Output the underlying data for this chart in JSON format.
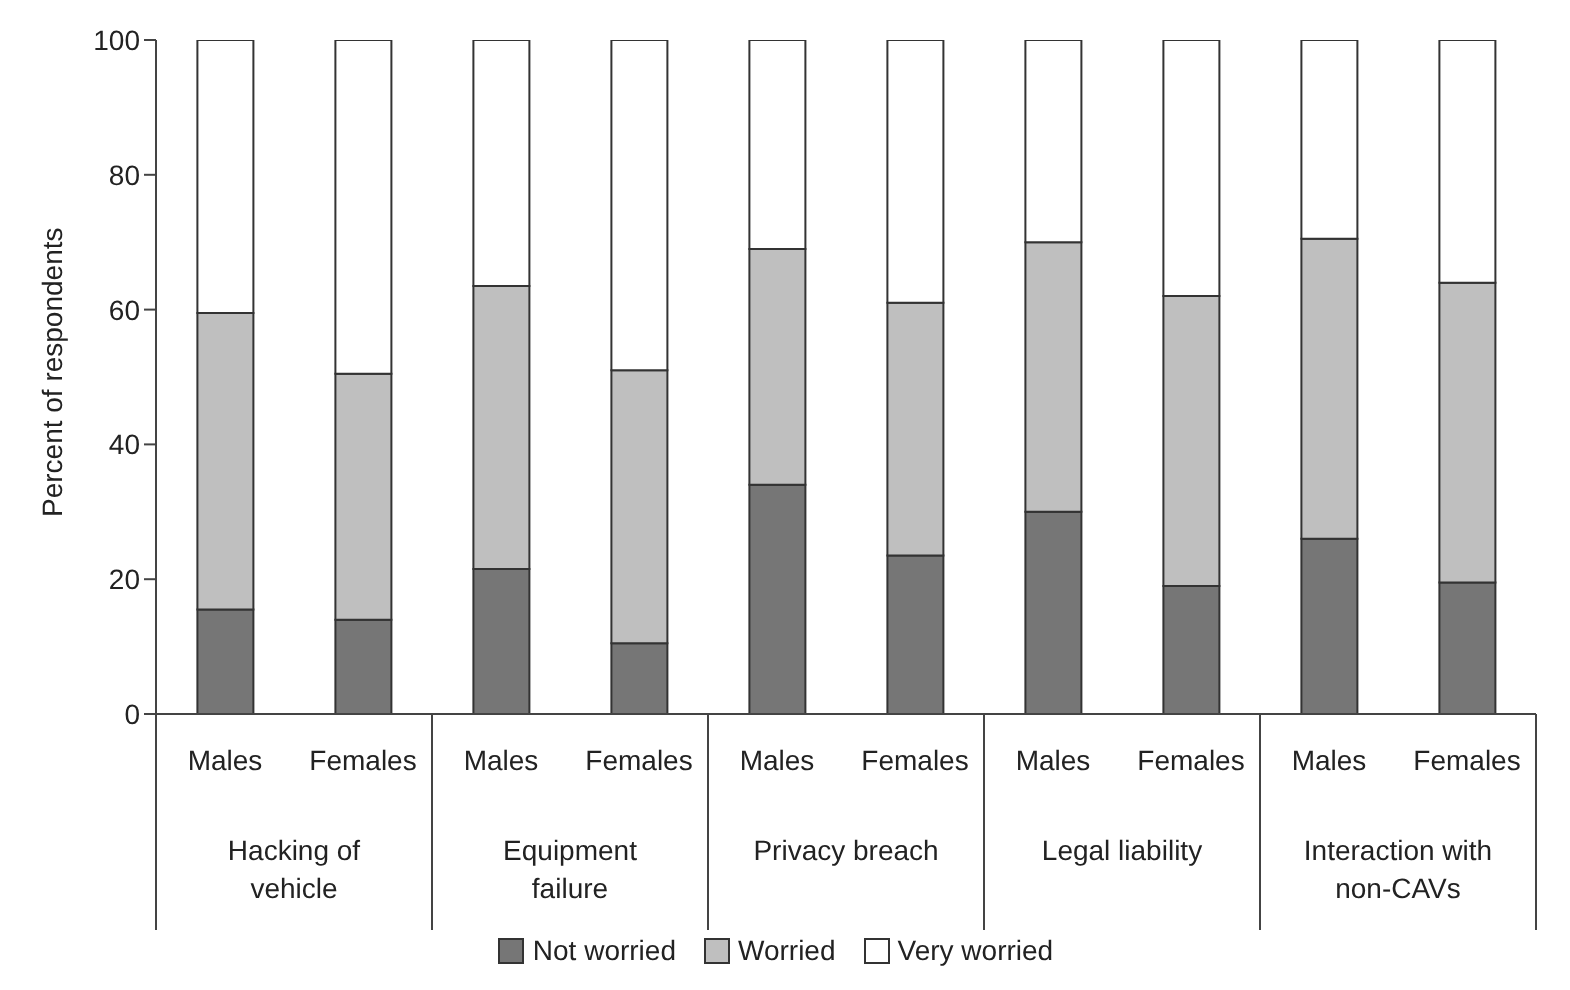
{
  "chart_data": {
    "type": "bar",
    "stacked": true,
    "ylabel": "Percent of respondents",
    "categories": [
      "Males",
      "Females",
      "Males",
      "Females",
      "Males",
      "Females",
      "Males",
      "Females",
      "Males",
      "Females"
    ],
    "annotations": [
      "Hacking of vehicle",
      "Equipment failure",
      "Privacy breach",
      "Legal liability",
      "Interaction with non-CAVs"
    ],
    "series": [
      {
        "name": "Not worried",
        "color": "#767676",
        "values": [
          15.5,
          14,
          21.5,
          10.5,
          34,
          23.5,
          30,
          19,
          26,
          19.5
        ]
      },
      {
        "name": "Worried",
        "color": "#bfbfbf",
        "values": [
          44,
          36.5,
          42,
          40.5,
          35,
          37.5,
          40,
          43,
          44.5,
          44.5
        ]
      },
      {
        "name": "Very worried",
        "color": "#ffffff",
        "values": [
          40.5,
          49.5,
          36.5,
          49,
          31,
          39,
          30,
          38,
          29.5,
          36
        ]
      }
    ],
    "ylim": [
      0,
      100
    ],
    "yticks": [
      0,
      20,
      40,
      60,
      80,
      100
    ],
    "legend": "bottom"
  }
}
